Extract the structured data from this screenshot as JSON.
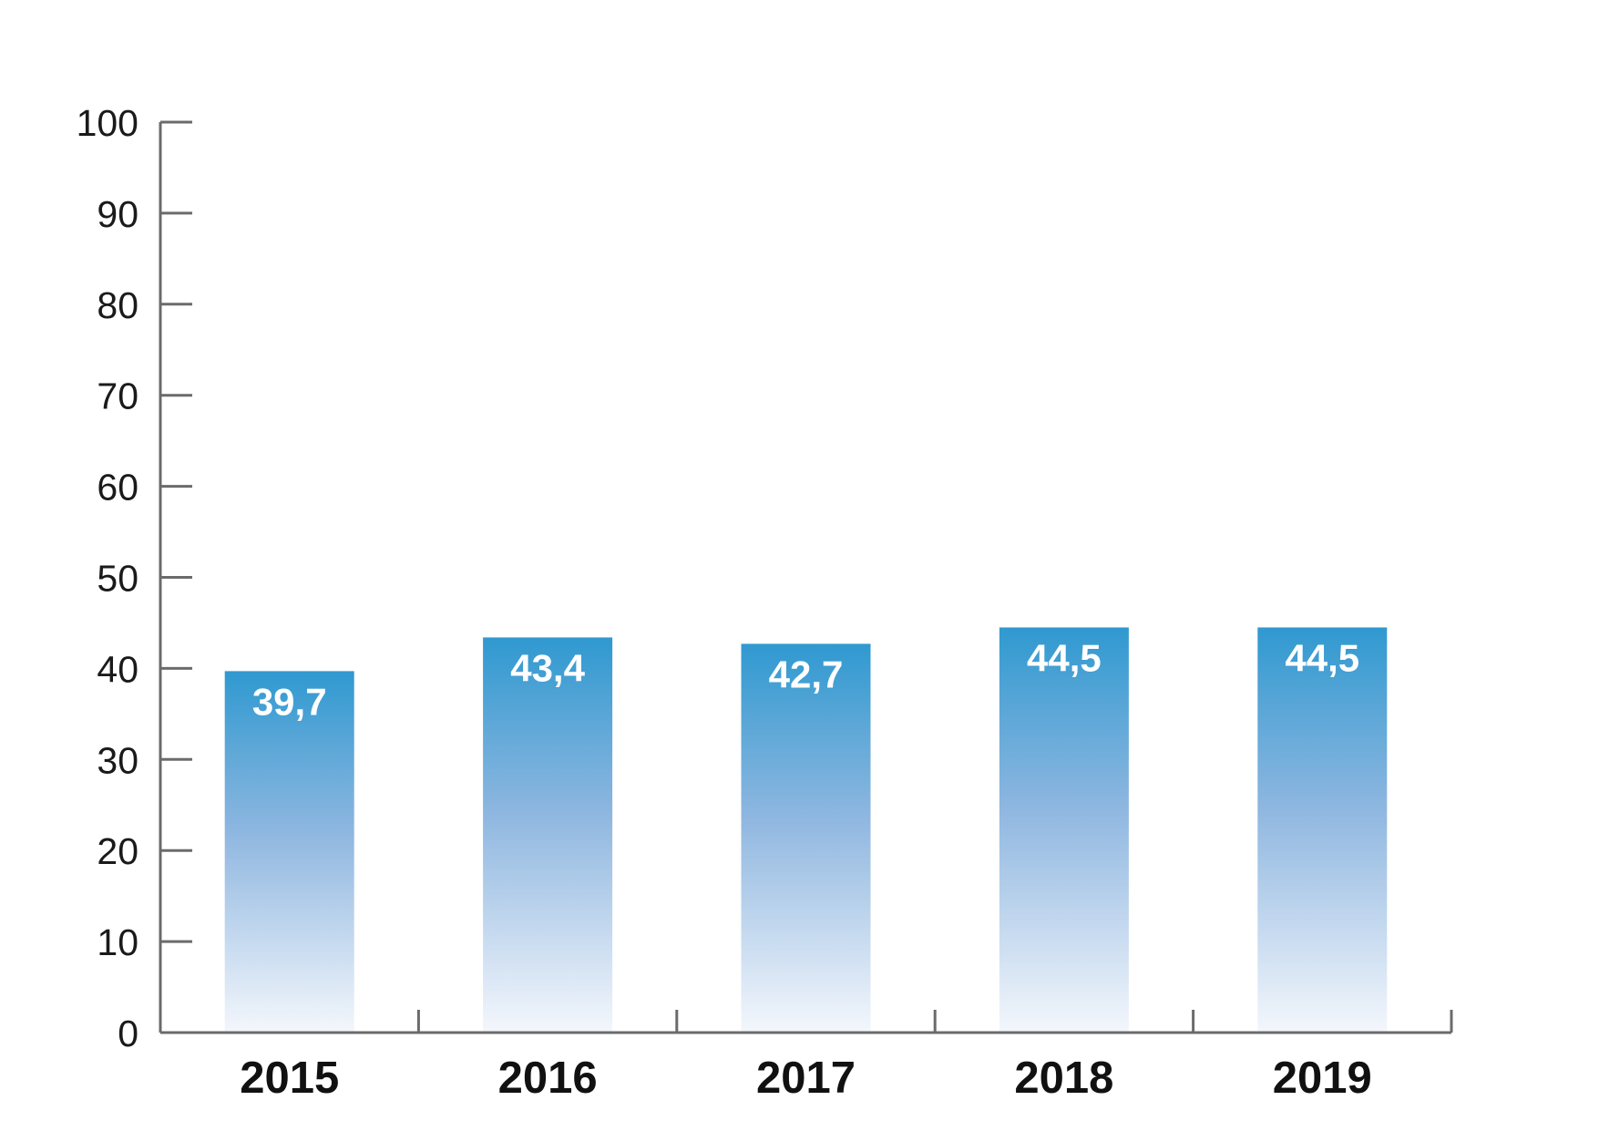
{
  "chart_data": {
    "type": "bar",
    "categories": [
      "2015",
      "2016",
      "2017",
      "2018",
      "2019"
    ],
    "values": [
      39.7,
      43.4,
      42.7,
      44.5,
      44.5
    ],
    "value_labels": [
      "39,7",
      "43,4",
      "42,7",
      "44,5",
      "44,5"
    ],
    "ylim": [
      0,
      100
    ],
    "yticks": [
      0,
      10,
      20,
      30,
      40,
      50,
      60,
      70,
      80,
      90,
      100
    ],
    "ytick_labels": [
      "0",
      "10",
      "20",
      "30",
      "40",
      "50",
      "60",
      "70",
      "80",
      "90",
      "100"
    ],
    "title": "",
    "xlabel": "",
    "ylabel": "",
    "grid": false,
    "legend": "none",
    "colors": {
      "bar_top": "#2f99d0",
      "bar_mid": "#8fb7e0",
      "bar_bottom": "#f4f7fc",
      "axis": "#6b6b6b"
    }
  }
}
